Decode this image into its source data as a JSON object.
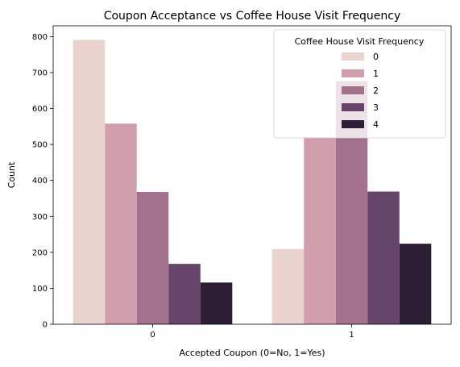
{
  "chart_data": {
    "type": "bar",
    "title": "Coupon Acceptance vs Coffee House Visit Frequency",
    "xlabel": "Accepted Coupon (0=No, 1=Yes)",
    "ylabel": "Count",
    "categories": [
      "0",
      "1"
    ],
    "ylim": [
      0,
      830
    ],
    "yticks": [
      "0",
      "100",
      "200",
      "300",
      "400",
      "500",
      "600",
      "700",
      "800"
    ],
    "grid": false,
    "legend": {
      "title": "Coffee House Visit Frequency",
      "placement": "top-right"
    },
    "series": [
      {
        "name": "0",
        "color": "#ead3cf",
        "values": [
          791,
          209
        ]
      },
      {
        "name": "1",
        "color": "#d09fab",
        "values": [
          558,
          520
        ]
      },
      {
        "name": "2",
        "color": "#a2718e",
        "values": [
          368,
          676
        ]
      },
      {
        "name": "3",
        "color": "#674469",
        "values": [
          168,
          369
        ]
      },
      {
        "name": "4",
        "color": "#2e1d36",
        "values": [
          116,
          224
        ]
      }
    ]
  }
}
